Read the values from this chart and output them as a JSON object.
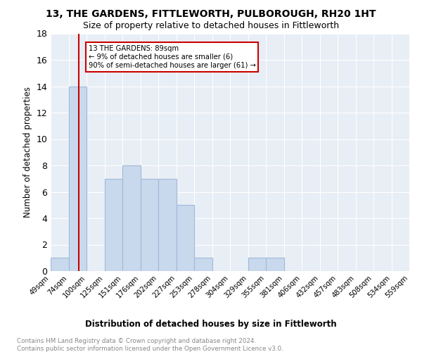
{
  "title": "13, THE GARDENS, FITTLEWORTH, PULBOROUGH, RH20 1HT",
  "subtitle": "Size of property relative to detached houses in Fittleworth",
  "xlabel": "Distribution of detached houses by size in Fittleworth",
  "ylabel": "Number of detached properties",
  "bar_color": "#c9d9ed",
  "bar_edge_color": "#a0b8d8",
  "bg_color": "#e8eef5",
  "grid_color": "white",
  "bin_labels": [
    "49sqm",
    "74sqm",
    "100sqm",
    "125sqm",
    "151sqm",
    "176sqm",
    "202sqm",
    "227sqm",
    "253sqm",
    "278sqm",
    "304sqm",
    "329sqm",
    "355sqm",
    "381sqm",
    "406sqm",
    "432sqm",
    "457sqm",
    "483sqm",
    "508sqm",
    "534sqm",
    "559sqm"
  ],
  "values": [
    1,
    14,
    0,
    7,
    8,
    7,
    7,
    5,
    1,
    0,
    0,
    1,
    1,
    0,
    0,
    0,
    0,
    0,
    0,
    0
  ],
  "ylim": [
    0,
    18
  ],
  "yticks": [
    0,
    2,
    4,
    6,
    8,
    10,
    12,
    14,
    16,
    18
  ],
  "property_line_x": 1.65,
  "vline_color": "#cc0000",
  "annotation_line1": "13 THE GARDENS: 89sqm",
  "annotation_line2": "← 9% of detached houses are smaller (6)",
  "annotation_line3": "90% of semi-detached houses are larger (61) →",
  "annotation_box_facecolor": "#ffffff",
  "annotation_box_edgecolor": "#cc0000",
  "footer_text1": "Contains HM Land Registry data © Crown copyright and database right 2024.",
  "footer_text2": "Contains public sector information licensed under the Open Government Licence v3.0."
}
